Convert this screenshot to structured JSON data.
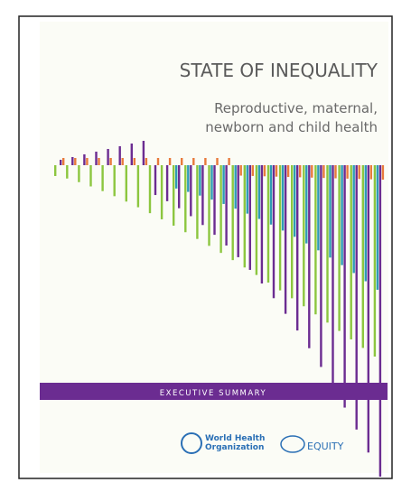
{
  "cover": {
    "title": "STATE OF INEQUALITY",
    "subtitle": [
      "Reproductive, maternal,",
      "newborn and child health"
    ],
    "band": "EXECUTIVE SUMMARY",
    "logos": {
      "who": [
        "World Health",
        "Organization"
      ],
      "equity": "EQUITY"
    }
  }
}
